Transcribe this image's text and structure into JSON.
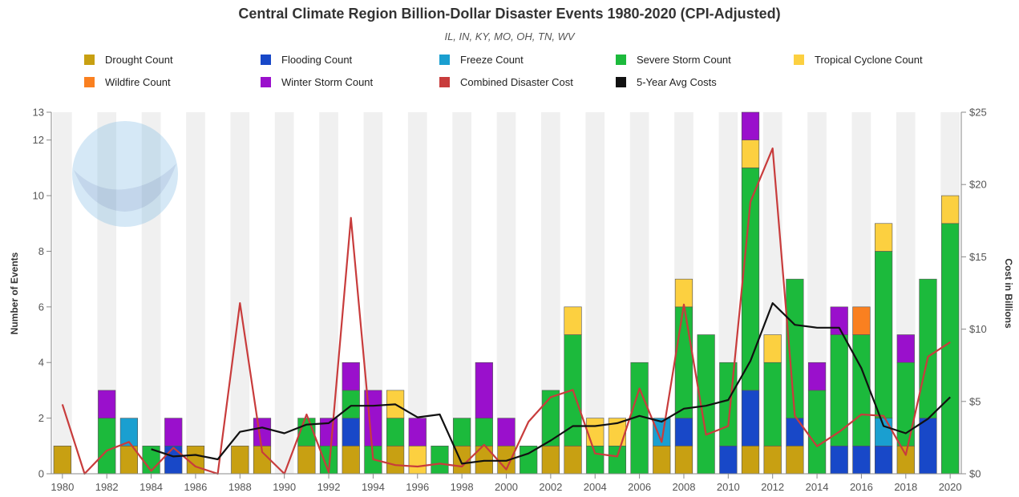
{
  "chart_data": {
    "type": "bar",
    "title": "Central Climate Region Billion-Dollar Disaster Events 1980-2020 (CPI-Adjusted)",
    "subtitle": "IL, IN, KY, MO, OH, TN, WV",
    "ylabel": "Number of Events",
    "y2label": "Cost in Billions",
    "ylim": [
      0,
      13
    ],
    "y2lim": [
      0,
      25
    ],
    "yticks": [
      0,
      2,
      4,
      6,
      8,
      10,
      12,
      13
    ],
    "y2ticks": [
      "$0",
      "$5",
      "$10",
      "$15",
      "$20",
      "$25"
    ],
    "xticks": [
      "1980",
      "1982",
      "1984",
      "1986",
      "1988",
      "1990",
      "1992",
      "1994",
      "1996",
      "1998",
      "2000",
      "2002",
      "2004",
      "2006",
      "2008",
      "2010",
      "2012",
      "2014",
      "2016",
      "2018",
      "2020"
    ],
    "grid": "alternating vertical bands",
    "legend_position": "top",
    "categories": [
      "1980",
      "1981",
      "1982",
      "1983",
      "1984",
      "1985",
      "1986",
      "1987",
      "1988",
      "1989",
      "1990",
      "1991",
      "1992",
      "1993",
      "1994",
      "1995",
      "1996",
      "1997",
      "1998",
      "1999",
      "2000",
      "2001",
      "2002",
      "2003",
      "2004",
      "2005",
      "2006",
      "2007",
      "2008",
      "2009",
      "2010",
      "2011",
      "2012",
      "2013",
      "2014",
      "2015",
      "2016",
      "2017",
      "2018",
      "2019",
      "2020"
    ],
    "series": [
      {
        "name": "Drought Count",
        "kind": "bar",
        "color": "#c8a012",
        "values": [
          1,
          0,
          0,
          1,
          0,
          0,
          1,
          0,
          1,
          1,
          0,
          1,
          0,
          1,
          0,
          1,
          0,
          0,
          1,
          1,
          1,
          0,
          1,
          1,
          0,
          0,
          0,
          1,
          1,
          0,
          0,
          1,
          1,
          1,
          0,
          0,
          0,
          0,
          1,
          0,
          0
        ]
      },
      {
        "name": "Flooding Count",
        "kind": "bar",
        "color": "#1848c8",
        "values": [
          0,
          0,
          0,
          0,
          0,
          1,
          0,
          0,
          0,
          0,
          0,
          0,
          0,
          1,
          0,
          0,
          0,
          0,
          0,
          0,
          0,
          0,
          0,
          0,
          0,
          0,
          0,
          0,
          1,
          0,
          1,
          2,
          0,
          1,
          0,
          1,
          1,
          1,
          0,
          2,
          0
        ]
      },
      {
        "name": "Freeze Count",
        "kind": "bar",
        "color": "#1a9fd0",
        "values": [
          0,
          0,
          0,
          1,
          0,
          0,
          0,
          0,
          0,
          0,
          0,
          0,
          0,
          0,
          0,
          0,
          0,
          0,
          0,
          0,
          0,
          0,
          0,
          0,
          0,
          0,
          0,
          1,
          0,
          0,
          0,
          0,
          0,
          0,
          0,
          0,
          0,
          1,
          0,
          0,
          0
        ]
      },
      {
        "name": "Severe Storm Count",
        "kind": "bar",
        "color": "#1cba3c",
        "values": [
          0,
          0,
          2,
          0,
          1,
          0,
          0,
          0,
          0,
          0,
          0,
          1,
          1,
          1,
          1,
          1,
          0,
          1,
          1,
          1,
          0,
          1,
          2,
          4,
          1,
          1,
          4,
          0,
          4,
          5,
          3,
          8,
          3,
          5,
          3,
          4,
          4,
          6,
          3,
          5,
          9
        ]
      },
      {
        "name": "Tropical Cyclone Count",
        "kind": "bar",
        "color": "#fcd040",
        "values": [
          0,
          0,
          0,
          0,
          0,
          0,
          0,
          0,
          0,
          0,
          0,
          0,
          0,
          0,
          0,
          1,
          1,
          0,
          0,
          0,
          0,
          0,
          0,
          1,
          1,
          1,
          0,
          0,
          1,
          0,
          0,
          1,
          1,
          0,
          0,
          0,
          0,
          1,
          0,
          0,
          1
        ]
      },
      {
        "name": "Wildfire Count",
        "kind": "bar",
        "color": "#fa8020",
        "values": [
          0,
          0,
          0,
          0,
          0,
          0,
          0,
          0,
          0,
          0,
          0,
          0,
          0,
          0,
          0,
          0,
          0,
          0,
          0,
          0,
          0,
          0,
          0,
          0,
          0,
          0,
          0,
          0,
          0,
          0,
          0,
          0,
          0,
          0,
          0,
          0,
          1,
          0,
          0,
          0,
          0
        ]
      },
      {
        "name": "Winter Storm Count",
        "kind": "bar",
        "color": "#9a10cc",
        "values": [
          0,
          0,
          1,
          0,
          0,
          1,
          0,
          0,
          0,
          1,
          0,
          0,
          1,
          1,
          2,
          0,
          1,
          0,
          0,
          2,
          1,
          0,
          0,
          0,
          0,
          0,
          0,
          0,
          0,
          0,
          0,
          1,
          0,
          0,
          1,
          1,
          0,
          0,
          1,
          0,
          0
        ]
      },
      {
        "name": "Combined Disaster Cost",
        "kind": "line",
        "axis": "right",
        "color": "#c83c3c",
        "values": [
          4.8,
          0,
          1.6,
          2.2,
          0.2,
          1.8,
          0.5,
          0,
          11.8,
          1.5,
          0,
          4.1,
          0.1,
          17.7,
          1,
          0.6,
          0.5,
          0.7,
          0.5,
          2,
          0.3,
          3.6,
          5.3,
          5.8,
          1.4,
          1.2,
          5.9,
          2.2,
          11.7,
          2.7,
          3.3,
          18.8,
          22.5,
          4,
          1.9,
          2.9,
          4.1,
          4,
          1.3,
          8.1,
          9.1
        ]
      },
      {
        "name": "5-Year Avg Costs",
        "kind": "line",
        "axis": "right",
        "color": "#111111",
        "values": [
          null,
          null,
          null,
          null,
          1.7,
          1.2,
          1.3,
          1,
          2.9,
          3.2,
          2.8,
          3.4,
          3.5,
          4.7,
          4.7,
          4.8,
          3.9,
          4.1,
          0.7,
          0.9,
          0.9,
          1.4,
          2.3,
          3.3,
          3.3,
          3.5,
          4,
          3.6,
          4.5,
          4.7,
          5.1,
          7.8,
          11.8,
          10.3,
          10.1,
          10.1,
          7.3,
          3.3,
          2.8,
          3.8,
          5.3
        ]
      }
    ]
  }
}
